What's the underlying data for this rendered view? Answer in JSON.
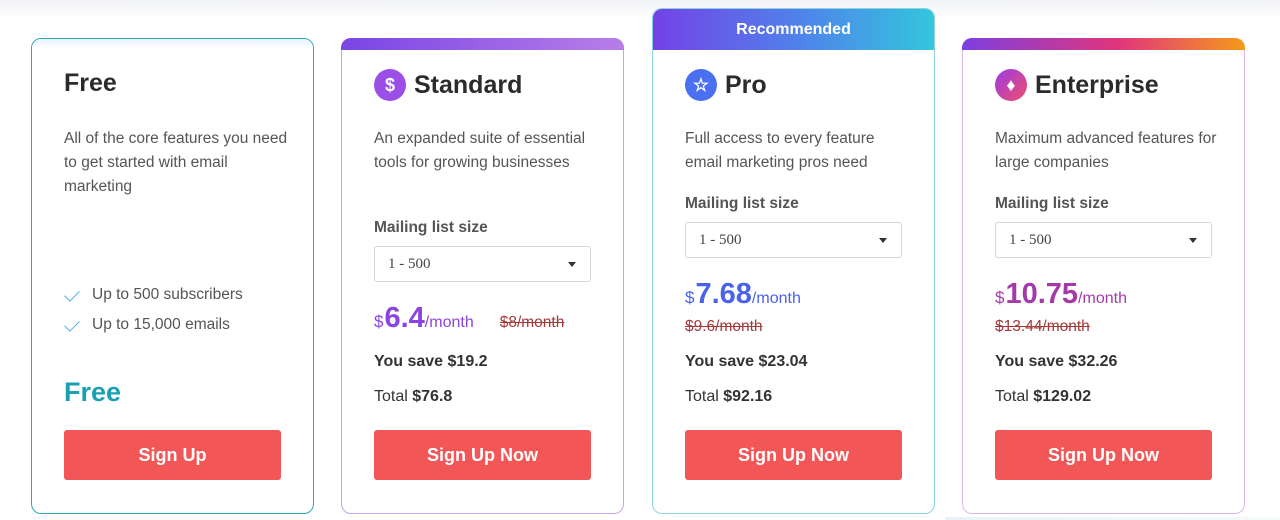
{
  "plans": {
    "free": {
      "name": "Free",
      "description": "All of the core features you need to get started with email marketing",
      "features": [
        "Up to 500 subscribers",
        "Up to 15,000 emails"
      ],
      "price": "Free",
      "button": "Sign Up"
    },
    "standard": {
      "name": "Standard",
      "icon": "dollar-icon",
      "description": "An expanded suite of essential tools for growing businesses",
      "list_label": "Mailing list size",
      "list_value": "1 - 500",
      "currency": "$",
      "price": "6.4",
      "per": "/month",
      "old_price": "$8/month",
      "save": "You save $19.2",
      "total_label": "Total ",
      "total_value": "$76.8",
      "button": "Sign Up Now"
    },
    "pro": {
      "banner": "Recommended",
      "name": "Pro",
      "icon": "star-icon",
      "description": "Full access to every feature email marketing pros need",
      "list_label": "Mailing list size",
      "list_value": "1 - 500",
      "currency": "$",
      "price": "7.68",
      "per": "/month",
      "old_price": "$9.6/month",
      "save": "You save $23.04",
      "total_label": "Total ",
      "total_value": "$92.16",
      "button": "Sign Up Now"
    },
    "enterprise": {
      "name": "Enterprise",
      "icon": "gem-icon",
      "description": "Maximum advanced features for large companies",
      "list_label": "Mailing list size",
      "list_value": "1 - 500",
      "currency": "$",
      "price": "10.75",
      "per": "/month",
      "old_price": "$13.44/month",
      "save": "You save $32.26",
      "total_label": "Total ",
      "total_value": "$129.02",
      "button": "Sign Up Now"
    }
  },
  "colors": {
    "button": "#f25656",
    "free_accent": "#1a9fb3",
    "standard_accent": "#8a44e0",
    "pro_accent": "#4a62e8",
    "enterprise_accent": "#a43aa8"
  }
}
